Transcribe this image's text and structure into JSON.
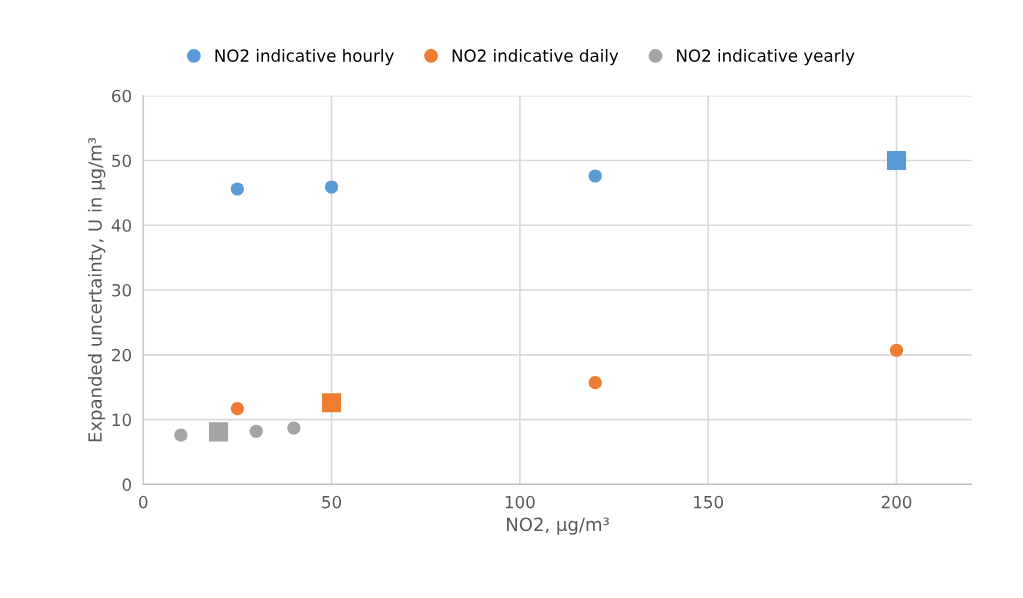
{
  "chart_data": {
    "type": "scatter",
    "xlabel": "NO2, µg/m³",
    "ylabel": "Expanded uncertainty, U in µg/m³",
    "series": [
      {
        "name": "NO2 indicative hourly",
        "color": "#5b9bd5",
        "marker": "circle",
        "x": [
          25,
          50,
          120
        ],
        "values": [
          45.6,
          45.9,
          47.6
        ]
      },
      {
        "name": "NO2 indicative daily",
        "color": "#ed7d31",
        "marker": "circle",
        "x": [
          25,
          120,
          200
        ],
        "values": [
          11.7,
          15.7,
          20.7
        ]
      },
      {
        "name": "NO2 indicative yearly",
        "color": "#a5a5a5",
        "marker": "circle",
        "x": [
          10,
          30,
          40
        ],
        "values": [
          7.6,
          8.2,
          8.7
        ]
      },
      {
        "color": "#5b9bd5",
        "marker": "square",
        "x": [
          200
        ],
        "values": [
          50
        ]
      },
      {
        "color": "#ed7d31",
        "marker": "square",
        "x": [
          50
        ],
        "values": [
          12.6
        ]
      },
      {
        "color": "#a5a5a5",
        "marker": "square",
        "x": [
          20
        ],
        "values": [
          8.1
        ]
      }
    ],
    "xlim": [
      0,
      220
    ],
    "xticks": [
      0,
      50,
      100,
      150,
      200
    ],
    "ylim": [
      0,
      60
    ],
    "yticks": [
      0,
      10,
      20,
      30,
      40,
      50,
      60
    ],
    "grid": true,
    "legend": "top"
  }
}
